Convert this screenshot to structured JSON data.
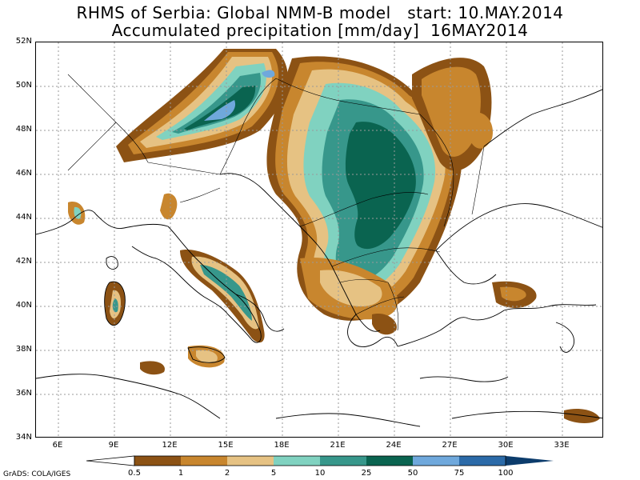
{
  "title": {
    "line1": "RHMS of Serbia: Global NMM-B model   start: 10.MAY.2014",
    "line2": "Accumulated precipitation [mm/day]  16MAY2014"
  },
  "axes": {
    "y_labels": [
      "52N",
      "50N",
      "48N",
      "46N",
      "44N",
      "42N",
      "40N",
      "38N",
      "36N",
      "34N"
    ],
    "x_labels": [
      "6E",
      "9E",
      "12E",
      "15E",
      "18E",
      "21E",
      "24E",
      "27E",
      "30E",
      "33E"
    ]
  },
  "map_extent": {
    "lon": [
      4.5,
      35
    ],
    "lat": [
      34,
      52
    ]
  },
  "colorbar": {
    "labels": [
      "0.5",
      "1",
      "2",
      "5",
      "10",
      "25",
      "50",
      "75",
      "100"
    ],
    "colors": [
      "#8c5214",
      "#c8862e",
      "#e6c283",
      "#80d2c0",
      "#37978b",
      "#0a6450",
      "#6fa8dc",
      "#2b6aa8",
      "#0c3c6c"
    ]
  },
  "credit": "GrADS: COLA/IGES",
  "chart_data": {
    "type": "heatmap",
    "title": "RHMS of Serbia: Global NMM-B model   start: 10.MAY.2014 / Accumulated precipitation [mm/day]  16MAY2014",
    "variable": "Accumulated precipitation",
    "units": "mm/day",
    "valid_date": "16MAY2014",
    "start_date": "10.MAY.2014",
    "lon_range": [
      4.5,
      35
    ],
    "lat_range": [
      34,
      52
    ],
    "contour_levels": [
      0.5,
      1,
      2,
      5,
      10,
      25,
      50,
      75,
      100
    ],
    "grid": true
  }
}
